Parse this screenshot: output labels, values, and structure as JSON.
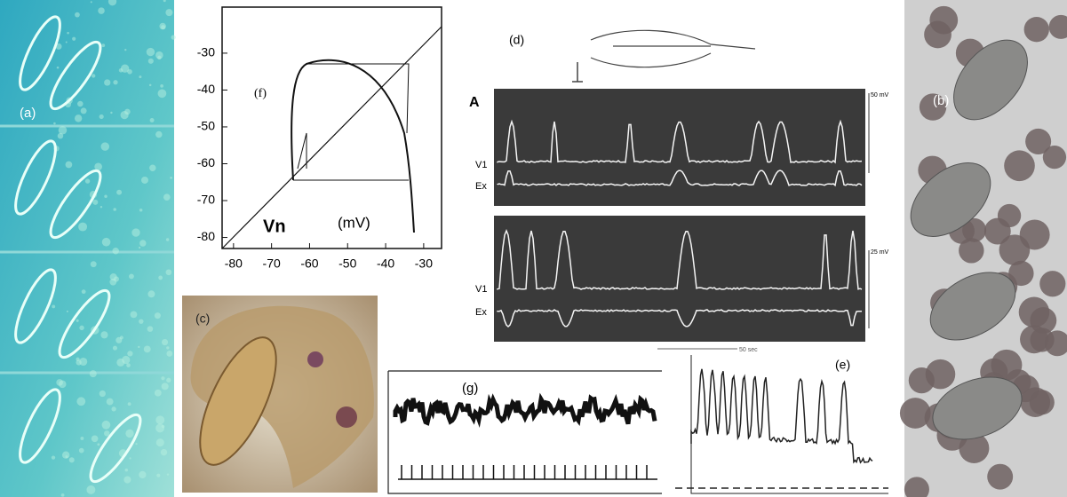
{
  "panels": {
    "a": {
      "label": "(a)"
    },
    "b": {
      "label": "(b)"
    },
    "c": {
      "label": "(c)"
    },
    "d": {
      "label": "(d)",
      "trace_labels": [
        "A",
        "V1",
        "Ex",
        "V1",
        "Ex"
      ],
      "scale_labels": [
        "50 mV",
        "25 mV",
        "50 sec"
      ]
    },
    "e": {
      "label": "(e)"
    },
    "f": {
      "label": "(f)",
      "x_label": "Vn",
      "unit_label": "(mV)",
      "xlim": [
        -83,
        -25.3
      ],
      "ylim": [
        -83,
        -17.5
      ],
      "xticks": [
        -80,
        -70,
        -60,
        -50,
        -40,
        -30
      ],
      "yticks": [
        -30,
        -40,
        -50,
        -60,
        -70,
        -80
      ]
    },
    "g": {
      "label": "(g)"
    }
  }
}
